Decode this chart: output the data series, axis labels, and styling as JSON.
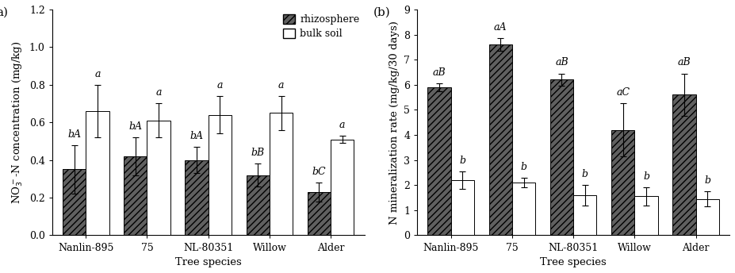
{
  "categories": [
    "Nanlin-895",
    "75",
    "NL-80351",
    "Willow",
    "Alder"
  ],
  "panel_a": {
    "rhizo_vals": [
      0.35,
      0.42,
      0.4,
      0.32,
      0.23
    ],
    "bulk_vals": [
      0.66,
      0.61,
      0.64,
      0.65,
      0.51
    ],
    "rhizo_err": [
      0.13,
      0.1,
      0.07,
      0.06,
      0.05
    ],
    "bulk_err": [
      0.14,
      0.09,
      0.1,
      0.09,
      0.02
    ],
    "rhizo_labels": [
      "bA",
      "bA",
      "bA",
      "bB",
      "bC"
    ],
    "bulk_labels": [
      "a",
      "a",
      "a",
      "a",
      "a"
    ],
    "ylabel": "NO$_3^-$-N concentration (mg/kg)",
    "ylim": [
      0.0,
      1.2
    ],
    "yticks": [
      0.0,
      0.2,
      0.4,
      0.6,
      0.8,
      1.0,
      1.2
    ],
    "panel_label": "a)"
  },
  "panel_b": {
    "rhizo_vals": [
      5.9,
      7.6,
      6.2,
      4.2,
      5.6
    ],
    "bulk_vals": [
      2.2,
      2.1,
      1.6,
      1.55,
      1.45
    ],
    "rhizo_err": [
      0.15,
      0.25,
      0.25,
      1.05,
      0.85
    ],
    "bulk_err": [
      0.35,
      0.18,
      0.4,
      0.35,
      0.3
    ],
    "rhizo_labels": [
      "aB",
      "aA",
      "aB",
      "aC",
      "aB"
    ],
    "bulk_labels": [
      "b",
      "b",
      "b",
      "b",
      "b"
    ],
    "ylabel": "N mineralization rate (mg/kg/30 days)",
    "ylim": [
      0,
      9
    ],
    "yticks": [
      0,
      1,
      2,
      3,
      4,
      5,
      6,
      7,
      8,
      9
    ],
    "panel_label": "(b)"
  },
  "xlabel": "Tree species",
  "legend_rhizo": "rhizosphere",
  "legend_bulk": "bulk soil",
  "hatch_pattern": "////",
  "rhizo_facecolor": "#606060",
  "bulk_color": "#ffffff",
  "bar_edge_color": "#000000",
  "bar_width": 0.38,
  "font_size": 9,
  "label_font_size": 9,
  "axis_label_font_size": 9.5
}
